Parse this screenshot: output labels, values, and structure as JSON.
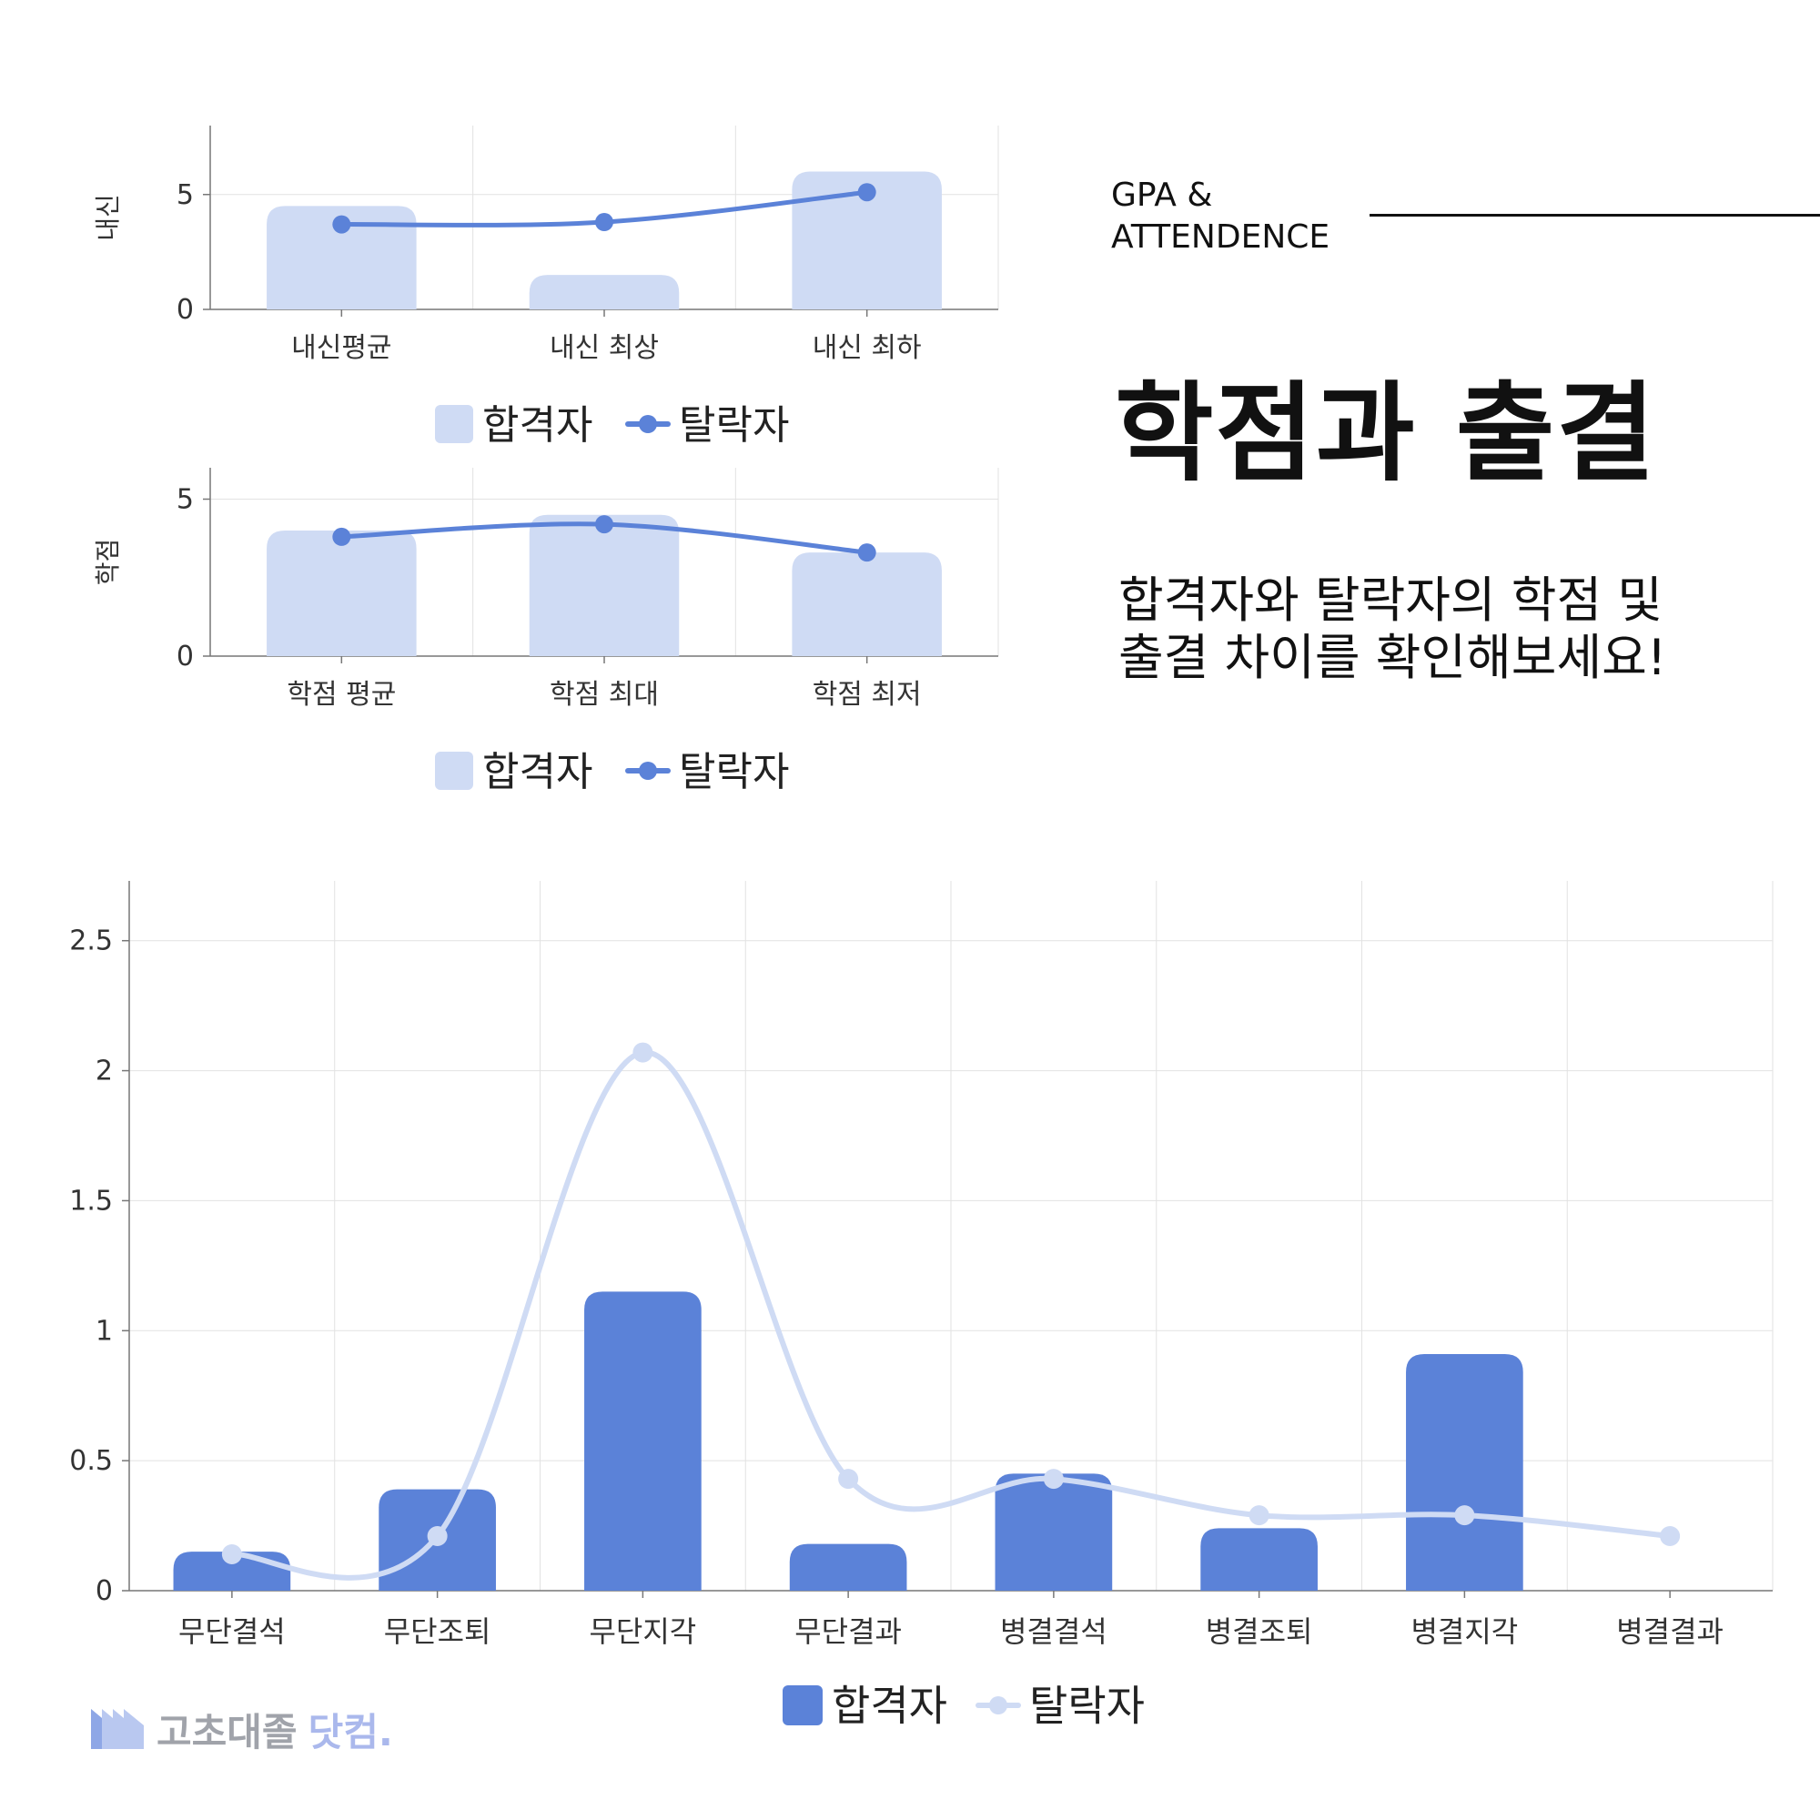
{
  "header": {
    "subtitle_line1": "GPA &",
    "subtitle_line2": "ATTENDENCE",
    "title": "학점과 출결",
    "description_line1": "합격자와 탈락자의 학점 및",
    "description_line2": "출결 차이를 확인해보세요!"
  },
  "logo": {
    "text_main": "고초대졸",
    "text_accent": "닷컴."
  },
  "colors": {
    "light_blue": "#cfdbf4",
    "blue": "#5b82d8",
    "grid": "#e2e2e2",
    "axis": "#777777"
  },
  "chart_data": [
    {
      "type": "bar",
      "ylabel": "내신",
      "categories": [
        "내신평균",
        "내신 최상",
        "내신 최하"
      ],
      "yticks": [
        "0",
        "5"
      ],
      "ylim": [
        0,
        8
      ],
      "legend": [
        "합격자",
        "탈락자"
      ],
      "legend_position": "bottom",
      "series": [
        {
          "name": "합격자",
          "kind": "bar",
          "values": [
            4.5,
            1.5,
            6.0
          ]
        },
        {
          "name": "탈락자",
          "kind": "line",
          "values": [
            3.7,
            3.8,
            5.1
          ]
        }
      ]
    },
    {
      "type": "bar",
      "ylabel": "학점",
      "categories": [
        "학점 평균",
        "학점 최대",
        "학점 최저"
      ],
      "yticks": [
        "0",
        "5"
      ],
      "ylim": [
        0,
        6
      ],
      "legend": [
        "합격자",
        "탈락자"
      ],
      "legend_position": "bottom",
      "series": [
        {
          "name": "합격자",
          "kind": "bar",
          "values": [
            4.0,
            4.5,
            3.3
          ]
        },
        {
          "name": "탈락자",
          "kind": "line",
          "values": [
            3.8,
            4.2,
            3.3
          ]
        }
      ]
    },
    {
      "type": "bar",
      "categories": [
        "무단결석",
        "무단조퇴",
        "무단지각",
        "무단결과",
        "병결결석",
        "병결조퇴",
        "병결지각",
        "병결결과"
      ],
      "yticks": [
        "0",
        "0.5",
        "1",
        "1.5",
        "2",
        "2.5"
      ],
      "ylim": [
        0,
        2.73
      ],
      "legend": [
        "합격자",
        "탈락자"
      ],
      "legend_position": "bottom",
      "series": [
        {
          "name": "합격자",
          "kind": "bar",
          "values": [
            0.15,
            0.39,
            1.15,
            0.18,
            0.45,
            0.24,
            0.91,
            0
          ]
        },
        {
          "name": "탈락자",
          "kind": "line",
          "values": [
            0.14,
            0.21,
            2.07,
            0.43,
            0.43,
            0.29,
            0.29,
            0.21
          ]
        }
      ]
    }
  ]
}
